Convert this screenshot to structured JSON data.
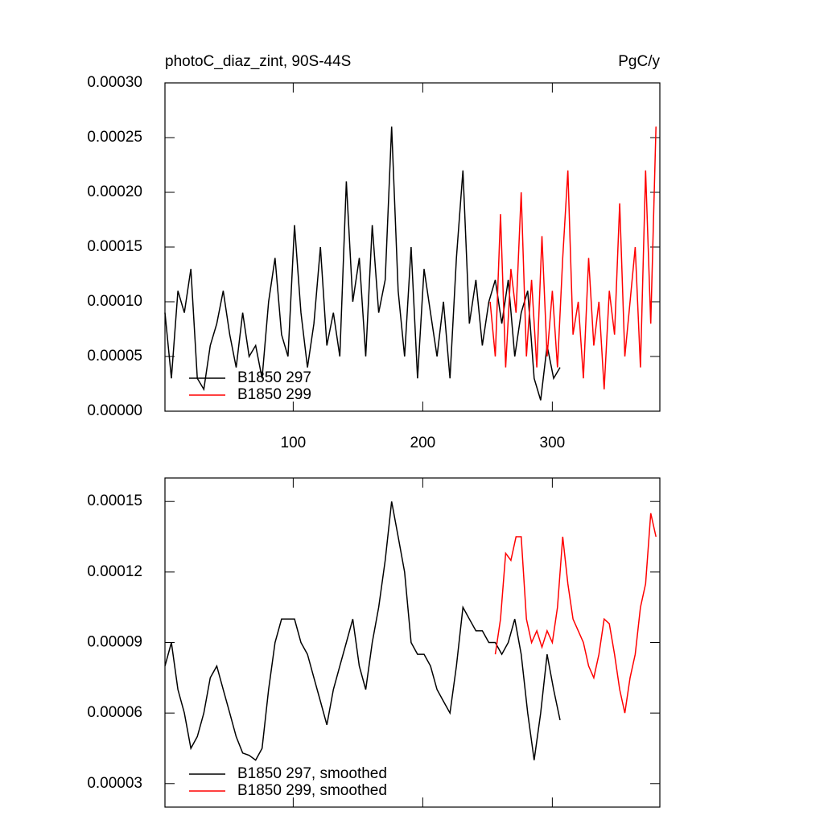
{
  "chart_data": [
    {
      "type": "line",
      "title": "photoC_diaz_zint, 90S-44S",
      "units": "PgC/y",
      "xlim": [
        1,
        383
      ],
      "xticks": [
        100,
        200,
        300
      ],
      "ylim": [
        0,
        0.0003
      ],
      "yticks": [
        {
          "value": 0,
          "label": "0.00000"
        },
        5e-05,
        {
          "value": 0.0001,
          "label": "0.00010"
        },
        0.00015,
        {
          "value": 0.0002,
          "label": "0.00020"
        },
        0.00025,
        {
          "value": 0.0003,
          "label": "0.00030"
        }
      ],
      "show_xtick_labels": true,
      "series": [
        {
          "name": "B1850 297",
          "color": "#000000",
          "x": [
            1,
            6,
            11,
            16,
            21,
            26,
            31,
            36,
            41,
            46,
            51,
            56,
            61,
            66,
            71,
            76,
            81,
            86,
            91,
            96,
            101,
            106,
            111,
            116,
            121,
            126,
            131,
            136,
            141,
            146,
            151,
            156,
            161,
            166,
            171,
            176,
            181,
            186,
            191,
            196,
            201,
            206,
            211,
            216,
            221,
            226,
            231,
            236,
            241,
            246,
            251,
            256,
            261,
            266,
            271,
            276,
            281,
            286,
            291,
            296,
            301,
            306
          ],
          "values": [
            9e-05,
            3e-05,
            0.00011,
            9e-05,
            0.00013,
            3e-05,
            2e-05,
            6e-05,
            8e-05,
            0.00011,
            7e-05,
            4e-05,
            9e-05,
            5e-05,
            6e-05,
            3e-05,
            0.0001,
            0.00014,
            7e-05,
            5e-05,
            0.00017,
            9e-05,
            4e-05,
            8e-05,
            0.00015,
            6e-05,
            9e-05,
            5e-05,
            0.00021,
            0.0001,
            0.00014,
            5e-05,
            0.00017,
            9e-05,
            0.00012,
            0.00026,
            0.00011,
            5e-05,
            0.00015,
            3e-05,
            0.00013,
            9e-05,
            5e-05,
            0.0001,
            3e-05,
            0.00014,
            0.00022,
            8e-05,
            0.00012,
            6e-05,
            0.0001,
            0.00012,
            8e-05,
            0.00012,
            5e-05,
            9e-05,
            0.00011,
            3e-05,
            1e-05,
            6e-05,
            3e-05,
            4e-05
          ]
        },
        {
          "name": "B1850 299",
          "color": "#ff0000",
          "x": [
            252,
            256,
            260,
            264,
            268,
            272,
            276,
            280,
            284,
            288,
            292,
            296,
            300,
            304,
            308,
            312,
            316,
            320,
            324,
            328,
            332,
            336,
            340,
            344,
            348,
            352,
            356,
            360,
            364,
            368,
            372,
            376,
            380
          ],
          "values": [
            0.0001,
            5e-05,
            0.00018,
            4e-05,
            0.00013,
            9e-05,
            0.0002,
            5e-05,
            0.00012,
            4e-05,
            0.00016,
            5e-05,
            0.00011,
            4e-05,
            0.00014,
            0.00022,
            7e-05,
            0.0001,
            3e-05,
            0.00014,
            6e-05,
            0.0001,
            2e-05,
            0.00011,
            7e-05,
            0.00019,
            5e-05,
            0.0001,
            0.00015,
            4e-05,
            0.00022,
            8e-05,
            0.00026
          ]
        }
      ]
    },
    {
      "type": "line",
      "xlim": [
        1,
        383
      ],
      "xticks": [
        100,
        200,
        300
      ],
      "ylim": [
        2e-05,
        0.00016
      ],
      "yticks": [
        3e-05,
        6e-05,
        9e-05,
        0.00012,
        0.00015
      ],
      "show_xtick_labels": false,
      "series": [
        {
          "name": "B1850 297, smoothed",
          "color": "#000000",
          "x": [
            1,
            6,
            11,
            16,
            21,
            26,
            31,
            36,
            41,
            46,
            51,
            56,
            61,
            66,
            71,
            76,
            81,
            86,
            91,
            96,
            101,
            106,
            111,
            116,
            121,
            126,
            131,
            136,
            141,
            146,
            151,
            156,
            161,
            166,
            171,
            176,
            181,
            186,
            191,
            196,
            201,
            206,
            211,
            216,
            221,
            226,
            231,
            236,
            241,
            246,
            251,
            256,
            261,
            266,
            271,
            276,
            281,
            286,
            291,
            296,
            301,
            306
          ],
          "values": [
            8e-05,
            9e-05,
            7e-05,
            6e-05,
            4.5e-05,
            5e-05,
            6e-05,
            7.5e-05,
            8e-05,
            7e-05,
            6e-05,
            5e-05,
            4.3e-05,
            4.2e-05,
            4e-05,
            4.5e-05,
            7e-05,
            9e-05,
            0.0001,
            0.0001,
            0.0001,
            9e-05,
            8.5e-05,
            7.5e-05,
            6.5e-05,
            5.5e-05,
            7e-05,
            8e-05,
            9e-05,
            0.0001,
            8e-05,
            7e-05,
            9e-05,
            0.000105,
            0.000125,
            0.00015,
            0.000135,
            0.00012,
            9e-05,
            8.5e-05,
            8.5e-05,
            8e-05,
            7e-05,
            6.5e-05,
            6e-05,
            8e-05,
            0.000105,
            0.0001,
            9.5e-05,
            9.5e-05,
            9e-05,
            9e-05,
            8.5e-05,
            9e-05,
            0.0001,
            8.5e-05,
            6e-05,
            4e-05,
            6e-05,
            8.5e-05,
            7e-05,
            5.7e-05
          ]
        },
        {
          "name": "B1850 299, smoothed",
          "color": "#ff0000",
          "x": [
            256,
            260,
            264,
            268,
            272,
            276,
            280,
            284,
            288,
            292,
            296,
            300,
            304,
            308,
            312,
            316,
            320,
            324,
            328,
            332,
            336,
            340,
            344,
            348,
            352,
            356,
            360,
            364,
            368,
            372,
            376,
            380
          ],
          "values": [
            8.5e-05,
            0.0001,
            0.000128,
            0.000125,
            0.000135,
            0.000135,
            0.0001,
            9e-05,
            9.5e-05,
            8.8e-05,
            9.5e-05,
            9e-05,
            0.000105,
            0.000135,
            0.000115,
            0.0001,
            9.5e-05,
            9e-05,
            8e-05,
            7.5e-05,
            8.5e-05,
            0.0001,
            9.8e-05,
            8.5e-05,
            7e-05,
            6e-05,
            7.5e-05,
            8.5e-05,
            0.000105,
            0.000115,
            0.000145,
            0.000135
          ]
        }
      ]
    }
  ]
}
